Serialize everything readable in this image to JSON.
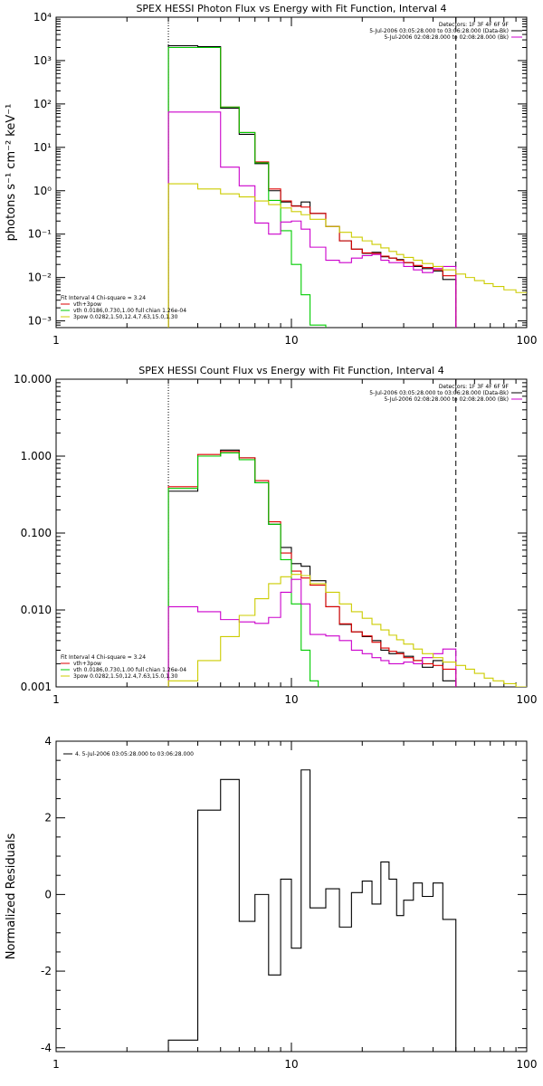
{
  "chart_data": [
    {
      "type": "line",
      "title": "SPEX HESSI Photon Flux vs Energy with Fit Function, Interval 4",
      "xlabel": "",
      "ylabel": "photons s⁻¹ cm⁻² keV⁻¹",
      "xscale": "log",
      "yscale": "log",
      "xlim": [
        1,
        100
      ],
      "ylim": [
        0.0007,
        10000
      ],
      "xticks": [
        1,
        10,
        100
      ],
      "xtick_labels": [
        "1",
        "10",
        "100"
      ],
      "yticks": [
        0.001,
        0.01,
        0.1,
        1,
        10,
        100,
        1000,
        10000
      ],
      "ytick_labels": [
        "10⁻³",
        "10⁻²",
        "10⁻¹",
        "10⁰",
        "10¹",
        "10²",
        "10³",
        "10⁴"
      ],
      "vlines": [
        {
          "x": 3.0,
          "style": "dotted",
          "color": "#000000"
        },
        {
          "x": 50.0,
          "style": "dashed",
          "color": "#000000"
        }
      ],
      "legend_top": {
        "position": "top-right",
        "entries": [
          {
            "text": "Detectors: 1F 3F 4F 6F 9F",
            "color": ""
          },
          {
            "text": "5-Jul-2006 03:05:28.000 to 03:06:28.000 (Data-Bk)",
            "color": "#000000"
          },
          {
            "text": "5-Jul-2006 02:08:28.000 to 02:08:28.000 (Bk)",
            "color": "#cc00cc"
          }
        ]
      },
      "legend_bottom": {
        "position": "bottom-left",
        "entries": [
          {
            "text": "Fit Interval 4    Chi-square = 3.24",
            "color": ""
          },
          {
            "text": "vth+3pow",
            "color": "#dd0000"
          },
          {
            "text": "vth 0.0186,0.730,1.00  full chian 1.26e-04",
            "color": "#00cc00"
          },
          {
            "text": "3pow 0.0282,1.50,12.4,7.63,15.0,1.30",
            "color": "#cccc00"
          }
        ]
      },
      "series": [
        {
          "color": "#000000",
          "edges": [
            3,
            4,
            5,
            6,
            7,
            8,
            9,
            10,
            11,
            12,
            14,
            16,
            18,
            20,
            22,
            24,
            26,
            28,
            30,
            33,
            36,
            40,
            44,
            50
          ],
          "values": [
            2200,
            2100,
            80,
            20,
            4.2,
            1.0,
            0.55,
            0.45,
            0.55,
            0.3,
            0.15,
            0.07,
            0.045,
            0.036,
            0.038,
            0.03,
            0.028,
            0.026,
            0.022,
            0.018,
            0.016,
            0.014,
            0.009
          ]
        },
        {
          "color": "#dd0000",
          "edges": [
            3,
            4,
            5,
            6,
            7,
            8,
            9,
            10,
            11,
            12,
            14,
            16,
            18,
            20,
            22,
            24,
            26,
            28,
            30,
            33,
            36,
            40,
            44,
            50
          ],
          "values": [
            2000,
            2000,
            85,
            22,
            4.6,
            1.1,
            0.58,
            0.44,
            0.42,
            0.3,
            0.15,
            0.07,
            0.045,
            0.037,
            0.036,
            0.031,
            0.028,
            0.025,
            0.022,
            0.019,
            0.017,
            0.015,
            0.011
          ]
        },
        {
          "color": "#00cc00",
          "edges": [
            3,
            4,
            5,
            6,
            7,
            8,
            9,
            10,
            11,
            12,
            14
          ],
          "values": [
            2000,
            2000,
            85,
            22,
            4.4,
            0.6,
            0.12,
            0.02,
            0.004,
            0.0008
          ]
        },
        {
          "color": "#cc00cc",
          "edges": [
            3,
            4,
            5,
            6,
            7,
            8,
            9,
            10,
            11,
            12,
            14,
            16,
            18,
            20,
            22,
            24,
            26,
            28,
            30,
            33,
            36,
            40,
            44,
            50
          ],
          "values": [
            65,
            65,
            3.5,
            1.3,
            0.18,
            0.1,
            0.19,
            0.2,
            0.13,
            0.05,
            0.025,
            0.022,
            0.028,
            0.032,
            0.034,
            0.025,
            0.022,
            0.022,
            0.018,
            0.015,
            0.013,
            0.016,
            0.018
          ]
        },
        {
          "color": "#cccc00",
          "edges": [
            3,
            4,
            5,
            6,
            7,
            8,
            9,
            10,
            11,
            12,
            14,
            16,
            18,
            20,
            22,
            24,
            26,
            28,
            30,
            33,
            36,
            40,
            44,
            50,
            55,
            60,
            66,
            72,
            80,
            90,
            100
          ],
          "values": [
            1.45,
            1.1,
            0.85,
            0.72,
            0.58,
            0.48,
            0.4,
            0.33,
            0.28,
            0.22,
            0.15,
            0.11,
            0.085,
            0.07,
            0.058,
            0.048,
            0.04,
            0.034,
            0.029,
            0.025,
            0.021,
            0.018,
            0.015,
            0.012,
            0.01,
            0.0085,
            0.0072,
            0.0062,
            0.0052,
            0.0045
          ]
        }
      ]
    },
    {
      "type": "line",
      "title": "SPEX HESSI Count Flux vs Energy with Fit Function, Interval 4",
      "xlabel": "",
      "ylabel": "",
      "xscale": "log",
      "yscale": "log",
      "xlim": [
        1,
        100
      ],
      "ylim": [
        0.001,
        10
      ],
      "xticks": [
        1,
        10,
        100
      ],
      "xtick_labels": [
        "1",
        "10",
        "100"
      ],
      "yticks": [
        0.001,
        0.01,
        0.1,
        1,
        10
      ],
      "ytick_labels": [
        "0.001",
        "0.010",
        "0.100",
        "1.000",
        "10.000"
      ],
      "vlines": [
        {
          "x": 3.0,
          "style": "dotted",
          "color": "#000000"
        },
        {
          "x": 50.0,
          "style": "dashed",
          "color": "#000000"
        }
      ],
      "legend_top": {
        "position": "top-right",
        "entries": [
          {
            "text": "Detectors: 1F 3F 4F 6F 9F",
            "color": ""
          },
          {
            "text": "5-Jul-2006 03:05:28.000 to 03:06:28.000 (Data-Bk)",
            "color": "#000000"
          },
          {
            "text": "5-Jul-2006 02:08:28.000 to 02:08:28.000 (Bk)",
            "color": "#cc00cc"
          }
        ]
      },
      "legend_bottom": {
        "position": "bottom-left",
        "entries": [
          {
            "text": "Fit Interval 4    Chi-square = 3.24",
            "color": ""
          },
          {
            "text": "vth+3pow",
            "color": "#dd0000"
          },
          {
            "text": "vth 0.0186,0.730,1.00  full chian 1.26e-04",
            "color": "#00cc00"
          },
          {
            "text": "3pow 0.0282,1.50,12.4,7.63,15.0,1.30",
            "color": "#cccc00"
          }
        ]
      },
      "series": [
        {
          "color": "#000000",
          "edges": [
            3,
            4,
            5,
            6,
            7,
            8,
            9,
            10,
            11,
            12,
            14,
            16,
            18,
            20,
            22,
            24,
            26,
            28,
            30,
            33,
            36,
            40,
            44,
            50
          ],
          "values": [
            0.35,
            1.0,
            1.2,
            0.95,
            0.45,
            0.13,
            0.065,
            0.04,
            0.037,
            0.024,
            0.011,
            0.0065,
            0.0052,
            0.0045,
            0.004,
            0.003,
            0.0027,
            0.0028,
            0.0025,
            0.0022,
            0.0018,
            0.0022,
            0.0012
          ]
        },
        {
          "color": "#dd0000",
          "edges": [
            3,
            4,
            5,
            6,
            7,
            8,
            9,
            10,
            11,
            12,
            14,
            16,
            18,
            20,
            22,
            24,
            26,
            28,
            30,
            33,
            36,
            40,
            44,
            50
          ],
          "values": [
            0.4,
            1.05,
            1.15,
            0.95,
            0.48,
            0.14,
            0.055,
            0.032,
            0.026,
            0.021,
            0.011,
            0.0066,
            0.0052,
            0.0046,
            0.0038,
            0.0032,
            0.0029,
            0.0027,
            0.0024,
            0.0022,
            0.002,
            0.0019,
            0.0017
          ]
        },
        {
          "color": "#00cc00",
          "edges": [
            3,
            4,
            5,
            6,
            7,
            8,
            9,
            10,
            11,
            12,
            13
          ],
          "values": [
            0.38,
            1.0,
            1.1,
            0.9,
            0.45,
            0.13,
            0.045,
            0.012,
            0.003,
            0.0012
          ]
        },
        {
          "color": "#cc00cc",
          "edges": [
            3,
            4,
            5,
            6,
            7,
            8,
            9,
            10,
            11,
            12,
            14,
            16,
            18,
            20,
            22,
            24,
            26,
            28,
            30,
            33,
            36,
            40,
            44,
            50
          ],
          "values": [
            0.011,
            0.0095,
            0.0075,
            0.007,
            0.0067,
            0.008,
            0.017,
            0.025,
            0.012,
            0.0048,
            0.0046,
            0.004,
            0.003,
            0.0027,
            0.0024,
            0.0022,
            0.002,
            0.002,
            0.0021,
            0.002,
            0.0024,
            0.0027,
            0.0031
          ]
        },
        {
          "color": "#cccc00",
          "edges": [
            3,
            4,
            5,
            6,
            7,
            8,
            9,
            10,
            11,
            12,
            14,
            16,
            18,
            20,
            22,
            24,
            26,
            28,
            30,
            33,
            36,
            40,
            44,
            50,
            55,
            60,
            66,
            72,
            80,
            90,
            100
          ],
          "values": [
            0.0012,
            0.0022,
            0.0045,
            0.0085,
            0.014,
            0.022,
            0.027,
            0.029,
            0.028,
            0.022,
            0.017,
            0.012,
            0.0095,
            0.0078,
            0.0065,
            0.0055,
            0.0047,
            0.0041,
            0.0036,
            0.0031,
            0.0027,
            0.0024,
            0.0021,
            0.0019,
            0.0017,
            0.0015,
            0.0013,
            0.0012,
            0.0011,
            0.001
          ]
        }
      ]
    },
    {
      "type": "line",
      "title": "",
      "xlabel": "",
      "ylabel": "Normalized Residuals",
      "xscale": "log",
      "yscale": "linear",
      "xlim": [
        1,
        100
      ],
      "ylim": [
        -4.1,
        4
      ],
      "xticks": [
        1,
        10,
        100
      ],
      "xtick_labels": [
        "1",
        "10",
        "100"
      ],
      "yticks": [
        -4,
        -2,
        0,
        2,
        4
      ],
      "ytick_labels": [
        "-4",
        "-2",
        "0",
        "2",
        "4"
      ],
      "vlines": [],
      "legend_top": {
        "position": "top-left",
        "entries": [
          {
            "text": "4.  5-Jul-2006 03:05:28.000 to 03:06:28.000",
            "color": "#000000"
          }
        ]
      },
      "legend_bottom": {
        "position": "",
        "entries": []
      },
      "series": [
        {
          "color": "#000000",
          "edges": [
            3,
            4,
            5,
            6,
            7,
            8,
            9,
            10,
            11,
            12,
            14,
            16,
            18,
            20,
            22,
            24,
            26,
            28,
            30,
            33,
            36,
            40,
            44,
            50
          ],
          "values": [
            -3.8,
            2.2,
            3.0,
            -0.7,
            0.0,
            -2.1,
            0.4,
            -1.4,
            3.25,
            -0.35,
            0.15,
            -0.85,
            0.05,
            0.35,
            -0.25,
            0.85,
            0.4,
            -0.55,
            -0.15,
            0.3,
            -0.05,
            0.3,
            -0.65
          ]
        }
      ]
    }
  ]
}
